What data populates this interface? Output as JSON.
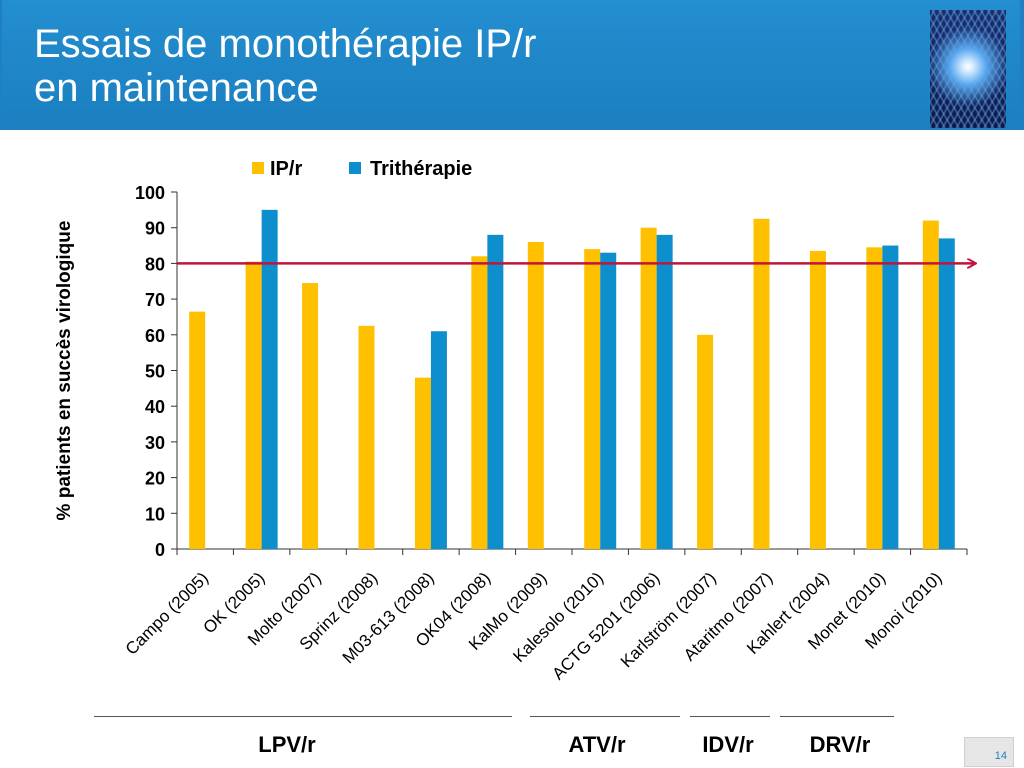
{
  "header": {
    "title_line1": "Essais de monothérapie IP/r",
    "title_line2": "en maintenance",
    "logo_icon": "starburst-logo-icon"
  },
  "page_number": "14",
  "colors": {
    "ipr": "#ffc000",
    "tri": "#0d8fce",
    "threshold": "#c0143c",
    "header": "#1f85c8"
  },
  "groups": [
    {
      "label": "LPV/r"
    },
    {
      "label": "ATV/r"
    },
    {
      "label": "IDV/r"
    },
    {
      "label": "DRV/r"
    }
  ],
  "chart_data": {
    "type": "bar",
    "categories": [
      "Campo (2005)",
      "OK (2005)",
      "Molto (2007)",
      "Sprinz (2008)",
      "M03-613 (2008)",
      "OK04 (2008)",
      "KalMo (2009)",
      "Kalesolo (2010)",
      "ACTG 5201 (2006)",
      "Karlström (2007)",
      "Ataritmo (2007)",
      "Kahlert (2004)",
      "Monet (2010)",
      "Monoi (2010)"
    ],
    "series": [
      {
        "name": "IP/r",
        "values": [
          66.5,
          80.5,
          74.5,
          62.5,
          48,
          82,
          86,
          84,
          90,
          60,
          92.5,
          83.5,
          84.5,
          92
        ]
      },
      {
        "name": "Trithérapie",
        "values": [
          null,
          95,
          null,
          null,
          61,
          88,
          null,
          83,
          88,
          null,
          null,
          null,
          85,
          87
        ]
      }
    ],
    "xlabel": "",
    "ylabel": "% patients en succès virologique",
    "ylim": [
      0,
      100
    ],
    "yticks": [
      0,
      10,
      20,
      30,
      40,
      50,
      60,
      70,
      80,
      90,
      100
    ],
    "threshold": 80,
    "legend_position": "top"
  }
}
